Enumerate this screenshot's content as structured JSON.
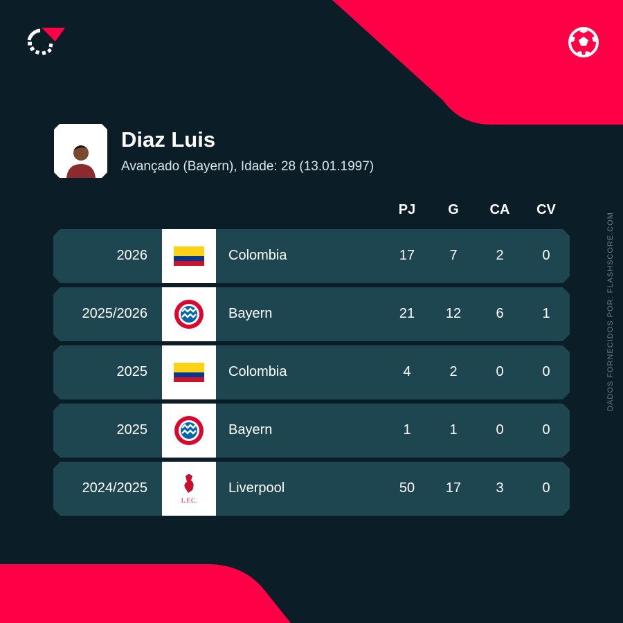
{
  "brand_color": "#ff0046",
  "player": {
    "name": "Diaz Luis",
    "subtitle": "Avançado (Bayern), Idade: 28 (13.01.1997)"
  },
  "columns": [
    "PJ",
    "G",
    "CA",
    "CV"
  ],
  "rows": [
    {
      "season": "2026",
      "team": "Colombia",
      "badge": "colombia-flag",
      "pj": "17",
      "g": "7",
      "ca": "2",
      "cv": "0"
    },
    {
      "season": "2025/2026",
      "team": "Bayern",
      "badge": "bayern-crest",
      "pj": "21",
      "g": "12",
      "ca": "6",
      "cv": "1"
    },
    {
      "season": "2025",
      "team": "Colombia",
      "badge": "colombia-flag",
      "pj": "4",
      "g": "2",
      "ca": "0",
      "cv": "0"
    },
    {
      "season": "2025",
      "team": "Bayern",
      "badge": "bayern-crest",
      "pj": "1",
      "g": "1",
      "ca": "0",
      "cv": "0"
    },
    {
      "season": "2024/2025",
      "team": "Liverpool",
      "badge": "liverpool-crest",
      "pj": "50",
      "g": "17",
      "ca": "3",
      "cv": "0"
    }
  ],
  "credit": "DADOS FORNECIDOS POR: FLASHSCORE.COM"
}
